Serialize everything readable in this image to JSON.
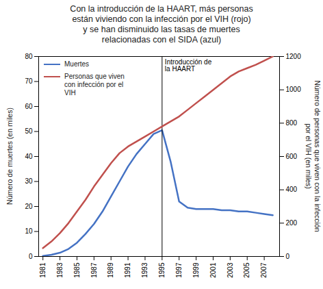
{
  "chart_data": {
    "type": "line",
    "title": "Con la introducción de la HAART, más personas\nestán viviendo con la infección por el VIH (rojo)\ny se han disminuido las tasas de muertes\nrelacionadas con el SIDA (azul)",
    "x": [
      1981,
      1982,
      1983,
      1984,
      1985,
      1986,
      1987,
      1988,
      1989,
      1990,
      1991,
      1992,
      1993,
      1994,
      1995,
      1996,
      1997,
      1998,
      1999,
      2000,
      2001,
      2002,
      2003,
      2004,
      2005,
      2006,
      2007,
      2008
    ],
    "xlim": [
      1980.5,
      2008.8
    ],
    "xticks": [
      1981,
      1983,
      1985,
      1987,
      1989,
      1991,
      1993,
      1995,
      1997,
      1999,
      2001,
      2003,
      2005,
      2007
    ],
    "ylabel": "Número de muertes (en miles)",
    "ylim": [
      0,
      80
    ],
    "yticks": [
      0,
      10,
      20,
      30,
      40,
      50,
      60,
      70,
      80
    ],
    "y2label": "Número de personas que viven con la infección\npor el VIH (en miles)",
    "y2lim": [
      0,
      1200
    ],
    "y2ticks": [
      0,
      200,
      400,
      600,
      800,
      1000,
      1200
    ],
    "grid": false,
    "legend": "upper left",
    "series": [
      {
        "name": "Muertes",
        "color": "#4472C4",
        "values": [
          0.2,
          0.7,
          1.5,
          3.0,
          5.5,
          9.0,
          13.0,
          18.0,
          24.0,
          30.0,
          36.0,
          41.0,
          45.0,
          49.0,
          50.5,
          38.0,
          22.0,
          19.5,
          19.0,
          19.0,
          19.0,
          18.5,
          18.5,
          18.0,
          18.0,
          17.5,
          17.0,
          16.5
        ]
      },
      {
        "name": "Personas que viven\ncon infección por el\nVIH",
        "color": "#C0504D",
        "axis": "y2",
        "values": [
          50,
          90,
          140,
          200,
          270,
          340,
          420,
          490,
          560,
          620,
          660,
          690,
          720,
          750,
          780,
          810,
          840,
          880,
          920,
          960,
          1000,
          1040,
          1080,
          1110,
          1130,
          1150,
          1175,
          1200
        ]
      }
    ],
    "annotations": [
      {
        "text": "Introducción de\nla HAART",
        "x": 1995
      }
    ]
  }
}
